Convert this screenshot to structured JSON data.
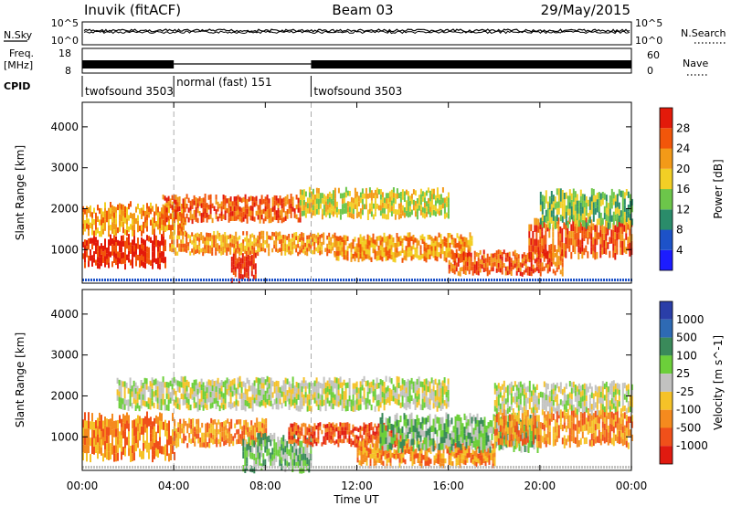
{
  "header": {
    "station": "Inuvik (fitACF)",
    "beam": "Beam 03",
    "date": "29/May/2015"
  },
  "strip_labels": {
    "nsky": "N.Sky",
    "nsky_hi": "10^5",
    "nsky_lo": "10^0",
    "nsearch": "N.Search",
    "nsearch_hi": "10^5",
    "nsearch_lo": "10^0",
    "freq_line1": "Freq.",
    "freq_line2": "[MHz]",
    "freq_hi": "18",
    "freq_lo": "8",
    "nave": "Nave",
    "nave_hi": "60",
    "nave_lo": "0",
    "cpid": "CPID"
  },
  "cpid_segments": [
    {
      "label": "twofsound 3503",
      "start_hour": 0,
      "end_hour": 4
    },
    {
      "label": "normal (fast) 151",
      "start_hour": 4,
      "end_hour": 10
    },
    {
      "label": "twofsound 3503",
      "start_hour": 10,
      "end_hour": 24
    }
  ],
  "x_axis": {
    "label": "Time UT",
    "range_hours": [
      0,
      24
    ],
    "ticks": [
      {
        "hour": 0,
        "label": "00:00"
      },
      {
        "hour": 4,
        "label": "04:00"
      },
      {
        "hour": 8,
        "label": "08:00"
      },
      {
        "hour": 12,
        "label": "12:00"
      },
      {
        "hour": 16,
        "label": "16:00"
      },
      {
        "hour": 20,
        "label": "20:00"
      },
      {
        "hour": 24,
        "label": "00:00"
      }
    ]
  },
  "chart_data": [
    {
      "type": "heatmap",
      "name": "power",
      "ylabel": "Slant Range [km]",
      "ylim": [
        180,
        4600
      ],
      "yticks": [
        1000,
        2000,
        3000,
        4000
      ],
      "colorbar_label": "Power [dB]",
      "colorbar_ticks": [
        "4",
        "8",
        "12",
        "16",
        "20",
        "24",
        "28"
      ],
      "colorbar_colors": [
        "#1c1cff",
        "#1d52c8",
        "#2a8c6a",
        "#6cc64a",
        "#f2cf25",
        "#f39a18",
        "#f2560a",
        "#e31a0a"
      ],
      "bands": [
        {
          "start_hour": 0.0,
          "end_hour": 3.6,
          "range_km": [
            600,
            1300
          ],
          "level": 7
        },
        {
          "start_hour": 0.0,
          "end_hour": 4.5,
          "range_km": [
            1400,
            2100
          ],
          "level": 5
        },
        {
          "start_hour": 3.5,
          "end_hour": 9.5,
          "range_km": [
            1700,
            2300
          ],
          "level": 6
        },
        {
          "start_hour": 3.8,
          "end_hour": 11.0,
          "range_km": [
            900,
            1400
          ],
          "level": 5
        },
        {
          "start_hour": 6.5,
          "end_hour": 7.6,
          "range_km": [
            250,
            900
          ],
          "level": 7
        },
        {
          "start_hour": 9.5,
          "end_hour": 16.0,
          "range_km": [
            1800,
            2450
          ],
          "level": 4
        },
        {
          "start_hour": 11.0,
          "end_hour": 17.0,
          "range_km": [
            750,
            1350
          ],
          "level": 5
        },
        {
          "start_hour": 16.0,
          "end_hour": 21.0,
          "range_km": [
            400,
            950
          ],
          "level": 6
        },
        {
          "start_hour": 19.5,
          "end_hour": 24.0,
          "range_km": [
            850,
            1700
          ],
          "level": 6
        },
        {
          "start_hour": 20.0,
          "end_hour": 24.0,
          "range_km": [
            1600,
            2400
          ],
          "level": 3
        }
      ]
    },
    {
      "type": "heatmap",
      "name": "velocity",
      "ylabel": "Slant Range [km]",
      "ylim": [
        180,
        4600
      ],
      "yticks": [
        1000,
        2000,
        3000,
        4000
      ],
      "colorbar_label": "Velocity [m s^-1]",
      "colorbar_ticks": [
        "1000",
        "500",
        "100",
        "25",
        "-25",
        "-100",
        "-500",
        "-1000"
      ],
      "colorbar_colors": [
        "#2a3ea8",
        "#2e6ab4",
        "#3a8a5a",
        "#6ccf3a",
        "#c2c2c0",
        "#f5c228",
        "#f58a1e",
        "#f0501a",
        "#e01a10"
      ],
      "bands": [
        {
          "start_hour": 0.0,
          "end_hour": 4.0,
          "range_km": [
            500,
            1500
          ],
          "level": 6
        },
        {
          "start_hour": 1.5,
          "end_hour": 16.0,
          "range_km": [
            1700,
            2400
          ],
          "level": 4
        },
        {
          "start_hour": 4.0,
          "end_hour": 8.0,
          "range_km": [
            800,
            1400
          ],
          "level": 6
        },
        {
          "start_hour": 7.0,
          "end_hour": 10.0,
          "range_km": [
            200,
            1000
          ],
          "level": 3
        },
        {
          "start_hour": 9.0,
          "end_hour": 14.0,
          "range_km": [
            800,
            1300
          ],
          "level": 7
        },
        {
          "start_hour": 12.0,
          "end_hour": 18.0,
          "range_km": [
            300,
            900
          ],
          "level": 6
        },
        {
          "start_hour": 13.0,
          "end_hour": 20.0,
          "range_km": [
            700,
            1500
          ],
          "level": 3
        },
        {
          "start_hour": 18.0,
          "end_hour": 24.0,
          "range_km": [
            800,
            1600
          ],
          "level": 6
        },
        {
          "start_hour": 18.0,
          "end_hour": 24.0,
          "range_km": [
            1600,
            2300
          ],
          "level": 4
        }
      ]
    }
  ]
}
